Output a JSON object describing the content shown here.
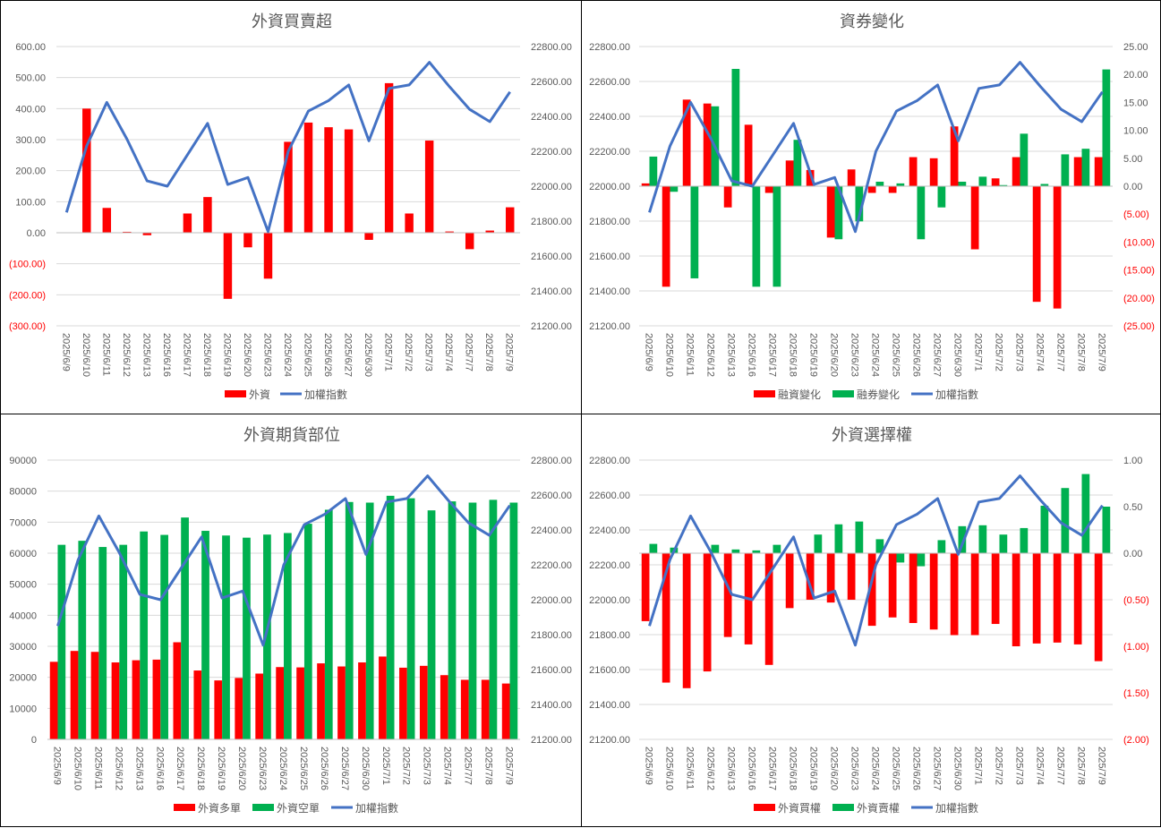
{
  "colors": {
    "red": "#ff0000",
    "green": "#00b050",
    "blue": "#4472c4",
    "grid": "#d9d9d9",
    "text": "#595959",
    "negative": "#ff0000"
  },
  "chart_data": [
    {
      "type": "bar",
      "title": "外資買賣超",
      "dates": [
        "2025/6/9",
        "2025/6/10",
        "2025/6/11",
        "2025/6/12",
        "2025/6/13",
        "2025/6/16",
        "2025/6/17",
        "2025/6/18",
        "2025/6/19",
        "2025/6/20",
        "2025/6/23",
        "2025/6/24",
        "2025/6/25",
        "2025/6/26",
        "2025/6/27",
        "2025/6/30",
        "2025/7/1",
        "2025/7/2",
        "2025/7/3",
        "2025/7/4",
        "2025/7/7",
        "2025/7/8",
        "2025/7/9"
      ],
      "left_axis": {
        "min": -300,
        "max": 600,
        "step": 100,
        "ticks": [
          "(300.00)",
          "(200.00)",
          "(100.00)",
          "0.00",
          "100.00",
          "200.00",
          "300.00",
          "400.00",
          "500.00",
          "600.00"
        ]
      },
      "right_axis": {
        "min": 21200,
        "max": 22800,
        "step": 200,
        "ticks": [
          "21200.00",
          "21400.00",
          "21600.00",
          "21800.00",
          "22000.00",
          "22200.00",
          "22400.00",
          "22600.00",
          "22800.00"
        ]
      },
      "series": [
        {
          "name": "外資",
          "kind": "bar",
          "color": "#ff0000",
          "axis": "left",
          "values": [
            0,
            400,
            80,
            3,
            -8,
            0,
            62,
            115,
            -213,
            -47,
            -148,
            293,
            355,
            340,
            333,
            -23,
            482,
            62,
            297,
            4,
            -53,
            7,
            82
          ]
        },
        {
          "name": "加權指數",
          "kind": "line",
          "color": "#4472c4",
          "axis": "right",
          "values": [
            21850,
            22230,
            22480,
            22270,
            22030,
            22000,
            22180,
            22360,
            22010,
            22050,
            21740,
            22200,
            22430,
            22490,
            22580,
            22260,
            22560,
            22580,
            22710,
            22570,
            22440,
            22370,
            22540
          ]
        }
      ],
      "legend": [
        "外資",
        "加權指數"
      ],
      "legend_position": "bottom"
    },
    {
      "type": "bar",
      "title": "資券變化",
      "dates": [
        "2025/6/9",
        "2025/6/10",
        "2025/6/11",
        "2025/6/12",
        "2025/6/13",
        "2025/6/16",
        "2025/6/17",
        "2025/6/18",
        "2025/6/19",
        "2025/6/20",
        "2025/6/23",
        "2025/6/24",
        "2025/6/25",
        "2025/6/26",
        "2025/6/27",
        "2025/6/30",
        "2025/7/1",
        "2025/7/2",
        "2025/7/3",
        "2025/7/4",
        "2025/7/7",
        "2025/7/8",
        "2025/7/9"
      ],
      "left_axis": {
        "min": 21200,
        "max": 22800,
        "step": 200,
        "ticks": [
          "21200.00",
          "21400.00",
          "21600.00",
          "21800.00",
          "22000.00",
          "22200.00",
          "22400.00",
          "22600.00",
          "22800.00"
        ]
      },
      "right_axis": {
        "min": -25,
        "max": 25,
        "step": 5,
        "ticks": [
          "(25.00)",
          "(20.00)",
          "(15.00)",
          "(10.00)",
          "(5.00)",
          "0.00",
          "5.00",
          "10.00",
          "15.00",
          "20.00",
          "25.00"
        ]
      },
      "series": [
        {
          "name": "融資變化",
          "kind": "bar",
          "color": "#ff0000",
          "axis": "right",
          "values": [
            0.5,
            -18,
            15.5,
            14.8,
            -3.8,
            11,
            -1.2,
            4.6,
            2.9,
            -9.2,
            3,
            -1.2,
            -1.2,
            5.2,
            5,
            10.7,
            -11.3,
            1.4,
            5.2,
            -20.7,
            -21.9,
            5.2,
            5.2
          ]
        },
        {
          "name": "融券變化",
          "kind": "bar",
          "color": "#00b050",
          "axis": "right",
          "values": [
            5.3,
            -1,
            -16.5,
            14.3,
            21,
            -18,
            -18,
            8.3,
            0,
            -9.5,
            -6.3,
            0.8,
            0.5,
            -9.5,
            -3.8,
            0.8,
            1.7,
            0.2,
            9.4,
            0.4,
            5.7,
            6.7,
            20.9
          ]
        },
        {
          "name": "加權指數",
          "kind": "line",
          "color": "#4472c4",
          "axis": "left",
          "values": [
            21850,
            22230,
            22480,
            22270,
            22030,
            22000,
            22180,
            22360,
            22010,
            22050,
            21740,
            22200,
            22430,
            22490,
            22580,
            22260,
            22560,
            22580,
            22710,
            22570,
            22440,
            22370,
            22540
          ]
        }
      ],
      "legend": [
        "融資變化",
        "融券變化",
        "加權指數"
      ],
      "legend_position": "bottom"
    },
    {
      "type": "bar",
      "title": "外資期貨部位",
      "dates": [
        "2025/6/9",
        "2025/6/10",
        "2025/6/11",
        "2025/6/12",
        "2025/6/13",
        "2025/6/16",
        "2025/6/17",
        "2025/6/18",
        "2025/6/19",
        "2025/6/20",
        "2025/6/23",
        "2025/6/24",
        "2025/6/25",
        "2025/6/26",
        "2025/6/27",
        "2025/6/30",
        "2025/7/1",
        "2025/7/2",
        "2025/7/3",
        "2025/7/4",
        "2025/7/7",
        "2025/7/8",
        "2025/7/9"
      ],
      "left_axis": {
        "min": 0,
        "max": 90000,
        "step": 10000,
        "ticks": [
          "0",
          "10000",
          "20000",
          "30000",
          "40000",
          "50000",
          "60000",
          "70000",
          "80000",
          "90000"
        ]
      },
      "right_axis": {
        "min": 21200,
        "max": 22800,
        "step": 200,
        "ticks": [
          "21200.00",
          "21400.00",
          "21600.00",
          "21800.00",
          "22000.00",
          "22200.00",
          "22400.00",
          "22600.00",
          "22800.00"
        ]
      },
      "series": [
        {
          "name": "外資多單",
          "kind": "bar",
          "color": "#ff0000",
          "axis": "left",
          "values": [
            25000,
            28500,
            28200,
            24800,
            25500,
            25700,
            31300,
            22200,
            19000,
            19800,
            21200,
            23300,
            23200,
            24500,
            23500,
            24800,
            26700,
            23100,
            23700,
            20700,
            19200,
            19200,
            18000
          ]
        },
        {
          "name": "外資空單",
          "kind": "bar",
          "color": "#00b050",
          "axis": "left",
          "values": [
            62700,
            64000,
            62000,
            62700,
            67000,
            65900,
            71500,
            67200,
            65700,
            65000,
            66000,
            66500,
            69500,
            74000,
            76500,
            76300,
            78500,
            77700,
            73800,
            76700,
            76300,
            77200,
            76300
          ]
        },
        {
          "name": "加權指數",
          "kind": "line",
          "color": "#4472c4",
          "axis": "right",
          "values": [
            21850,
            22230,
            22480,
            22270,
            22030,
            22000,
            22180,
            22360,
            22010,
            22050,
            21740,
            22200,
            22430,
            22490,
            22580,
            22260,
            22560,
            22580,
            22710,
            22570,
            22440,
            22370,
            22540
          ]
        }
      ],
      "legend": [
        "外資多單",
        "外資空單",
        "加權指數"
      ],
      "legend_position": "bottom"
    },
    {
      "type": "bar",
      "title": "外資選擇權",
      "dates": [
        "2025/6/9",
        "2025/6/10",
        "2025/6/11",
        "2025/6/12",
        "2025/6/13",
        "2025/6/16",
        "2025/6/17",
        "2025/6/18",
        "2025/6/19",
        "2025/6/20",
        "2025/6/23",
        "2025/6/24",
        "2025/6/25",
        "2025/6/26",
        "2025/6/27",
        "2025/6/30",
        "2025/7/1",
        "2025/7/2",
        "2025/7/3",
        "2025/7/4",
        "2025/7/7",
        "2025/7/8",
        "2025/7/9"
      ],
      "left_axis": {
        "min": 21200,
        "max": 22800,
        "step": 200,
        "ticks": [
          "21200.00",
          "21400.00",
          "21600.00",
          "21800.00",
          "22000.00",
          "22200.00",
          "22400.00",
          "22600.00",
          "22800.00"
        ]
      },
      "right_axis": {
        "min": -2,
        "max": 1,
        "step": 0.5,
        "ticks": [
          "(2.00)",
          "(1.50)",
          "(1.00)",
          "(0.50)",
          "0.00",
          "0.50",
          "1.00"
        ]
      },
      "series": [
        {
          "name": "外資買權",
          "kind": "bar",
          "color": "#ff0000",
          "axis": "right",
          "values": [
            -0.73,
            -1.39,
            -1.45,
            -1.27,
            -0.9,
            -0.98,
            -1.2,
            -0.59,
            -0.5,
            -0.53,
            -0.5,
            -0.78,
            -0.69,
            -0.75,
            -0.82,
            -0.88,
            -0.88,
            -0.76,
            -1,
            -0.97,
            -0.96,
            -0.98,
            -1.16
          ]
        },
        {
          "name": "外資賣權",
          "kind": "bar",
          "color": "#00b050",
          "axis": "right",
          "values": [
            0.1,
            0.06,
            0,
            0.09,
            0.04,
            0.03,
            0.09,
            0,
            0.2,
            0.31,
            0.34,
            0.15,
            -0.1,
            -0.14,
            0.14,
            0.29,
            0.3,
            0.2,
            0.27,
            0.51,
            0.7,
            0.85,
            0.5
          ]
        },
        {
          "name": "加權指數",
          "kind": "line",
          "color": "#4472c4",
          "axis": "left",
          "values": [
            21850,
            22230,
            22480,
            22270,
            22030,
            22000,
            22180,
            22360,
            22010,
            22050,
            21740,
            22200,
            22430,
            22490,
            22580,
            22260,
            22560,
            22580,
            22710,
            22570,
            22440,
            22370,
            22540
          ]
        }
      ],
      "legend": [
        "外資買權",
        "外資賣權",
        "加權指數"
      ],
      "legend_position": "bottom"
    }
  ]
}
